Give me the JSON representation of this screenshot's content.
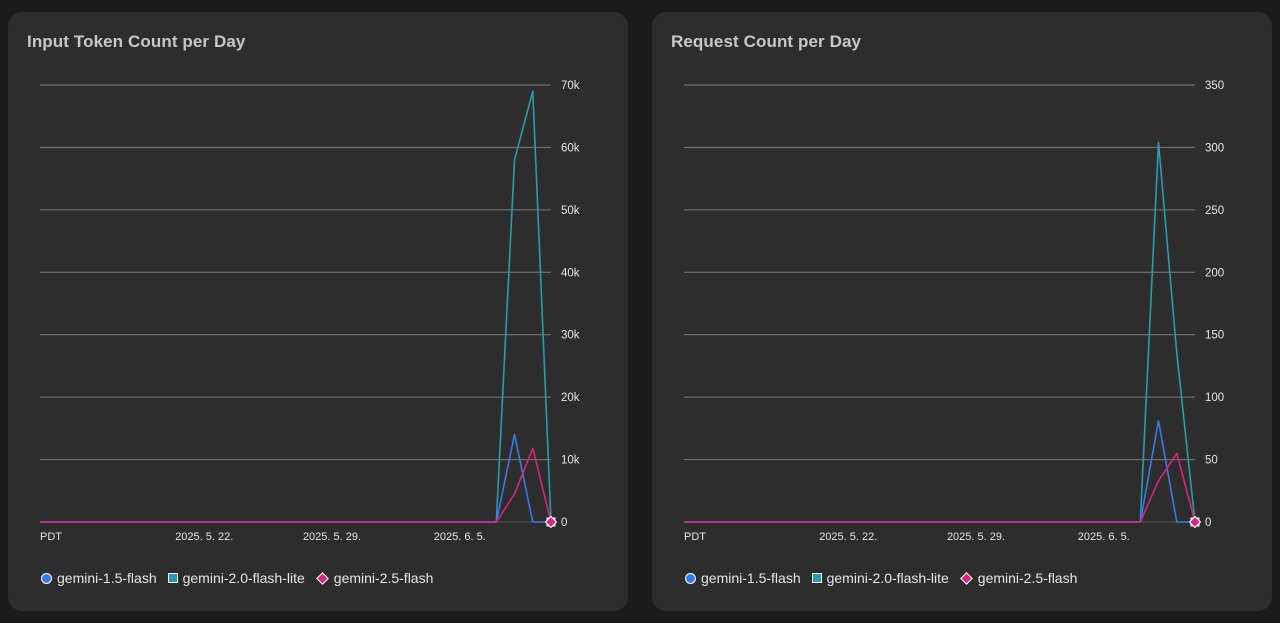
{
  "colors": {
    "background": "#1b1b1b",
    "card": "#2d2d2d",
    "gridline": "#7a7a7a",
    "axis_text": "#e6e6e6",
    "title_text": "#c8c8c8",
    "gemini-1.5-flash": "#3b79e6",
    "gemini-2.0-flash-lite": "#2b9bad",
    "gemini-2.5-flash": "#d4277e"
  },
  "charts": [
    {
      "title": "Input Token Count per Day",
      "legend": [
        {
          "label": "gemini-1.5-flash",
          "marker": "circle"
        },
        {
          "label": "gemini-2.0-flash-lite",
          "marker": "square"
        },
        {
          "label": "gemini-2.5-flash",
          "marker": "diamond"
        }
      ]
    },
    {
      "title": "Request Count per Day",
      "legend": [
        {
          "label": "gemini-1.5-flash",
          "marker": "circle"
        },
        {
          "label": "gemini-2.0-flash-lite",
          "marker": "square"
        },
        {
          "label": "gemini-2.5-flash",
          "marker": "diamond"
        }
      ]
    }
  ],
  "chart_data": [
    {
      "type": "line",
      "title": "Input Token Count per Day",
      "x_start_label": "PDT",
      "x_ticks": [
        {
          "x": "2025-05-22",
          "label": "2025. 5. 22."
        },
        {
          "x": "2025-05-29",
          "label": "2025. 5. 29."
        },
        {
          "x": "2025-06-05",
          "label": "2025. 6. 5."
        }
      ],
      "xlim": [
        "2025-05-13",
        "2025-06-10"
      ],
      "ylim": [
        0,
        70000
      ],
      "y_ticks": [
        {
          "value": 0,
          "label": "0"
        },
        {
          "value": 10000,
          "label": "10k"
        },
        {
          "value": 20000,
          "label": "20k"
        },
        {
          "value": 30000,
          "label": "30k"
        },
        {
          "value": 40000,
          "label": "40k"
        },
        {
          "value": 50000,
          "label": "50k"
        },
        {
          "value": 60000,
          "label": "60k"
        },
        {
          "value": 70000,
          "label": "70k"
        }
      ],
      "y_axis_side": "right",
      "grid": true,
      "legend_position": "bottom",
      "series": [
        {
          "name": "gemini-1.5-flash",
          "points": [
            [
              "2025-05-13",
              0
            ],
            [
              "2025-06-07",
              0
            ],
            [
              "2025-06-08",
              14000
            ],
            [
              "2025-06-09",
              0
            ],
            [
              "2025-06-10",
              0
            ]
          ]
        },
        {
          "name": "gemini-2.0-flash-lite",
          "points": [
            [
              "2025-05-13",
              0
            ],
            [
              "2025-06-07",
              0
            ],
            [
              "2025-06-08",
              58000
            ],
            [
              "2025-06-09",
              69000
            ],
            [
              "2025-06-10",
              0
            ]
          ]
        },
        {
          "name": "gemini-2.5-flash",
          "points": [
            [
              "2025-05-13",
              0
            ],
            [
              "2025-06-07",
              0
            ],
            [
              "2025-06-08",
              4500
            ],
            [
              "2025-06-09",
              11800
            ],
            [
              "2025-06-10",
              0
            ]
          ]
        }
      ]
    },
    {
      "type": "line",
      "title": "Request Count per Day",
      "x_start_label": "PDT",
      "x_ticks": [
        {
          "x": "2025-05-22",
          "label": "2025. 5. 22."
        },
        {
          "x": "2025-05-29",
          "label": "2025. 5. 29."
        },
        {
          "x": "2025-06-05",
          "label": "2025. 6. 5."
        }
      ],
      "xlim": [
        "2025-05-13",
        "2025-06-10"
      ],
      "ylim": [
        0,
        350
      ],
      "y_ticks": [
        {
          "value": 0,
          "label": "0"
        },
        {
          "value": 50,
          "label": "50"
        },
        {
          "value": 100,
          "label": "100"
        },
        {
          "value": 150,
          "label": "150"
        },
        {
          "value": 200,
          "label": "200"
        },
        {
          "value": 250,
          "label": "250"
        },
        {
          "value": 300,
          "label": "300"
        },
        {
          "value": 350,
          "label": "350"
        }
      ],
      "y_axis_side": "right",
      "grid": true,
      "legend_position": "bottom",
      "series": [
        {
          "name": "gemini-1.5-flash",
          "points": [
            [
              "2025-05-13",
              0
            ],
            [
              "2025-06-07",
              0
            ],
            [
              "2025-06-08",
              81
            ],
            [
              "2025-06-09",
              0
            ],
            [
              "2025-06-10",
              0
            ]
          ]
        },
        {
          "name": "gemini-2.0-flash-lite",
          "points": [
            [
              "2025-05-13",
              0
            ],
            [
              "2025-06-07",
              0
            ],
            [
              "2025-06-08",
              304
            ],
            [
              "2025-06-09",
              135
            ],
            [
              "2025-06-10",
              0
            ]
          ]
        },
        {
          "name": "gemini-2.5-flash",
          "points": [
            [
              "2025-05-13",
              0
            ],
            [
              "2025-06-07",
              0
            ],
            [
              "2025-06-08",
              33
            ],
            [
              "2025-06-09",
              55
            ],
            [
              "2025-06-10",
              0
            ]
          ]
        }
      ]
    }
  ]
}
